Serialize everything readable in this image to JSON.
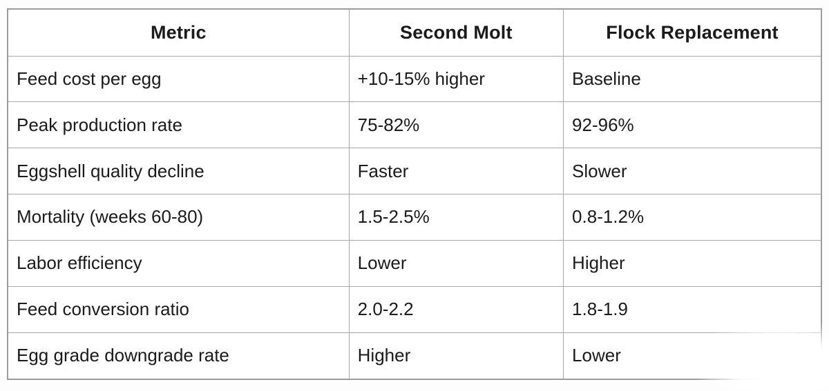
{
  "chart_data": {
    "type": "table",
    "columns": [
      "Metric",
      "Second Molt",
      "Flock Replacement"
    ],
    "rows": [
      [
        "Feed cost per egg",
        "+10-15% higher",
        "Baseline"
      ],
      [
        "Peak production rate",
        "75-82%",
        "92-96%"
      ],
      [
        "Eggshell quality decline",
        "Faster",
        "Slower"
      ],
      [
        "Mortality (weeks 60-80)",
        "1.5-2.5%",
        "0.8-1.2%"
      ],
      [
        "Labor efficiency",
        "Lower",
        "Higher"
      ],
      [
        "Feed conversion ratio",
        "2.0-2.2",
        "1.8-1.9"
      ],
      [
        "Egg grade downgrade rate",
        "Higher",
        "Lower"
      ]
    ],
    "layout": {
      "header_bold": true,
      "header_align": "center",
      "cell_align": "left",
      "grid": true
    }
  },
  "colors": {
    "background": "#ffffff",
    "border": "#a8a8a8",
    "outer_border": "#9c9c9c",
    "text": "#1b1b1b"
  }
}
